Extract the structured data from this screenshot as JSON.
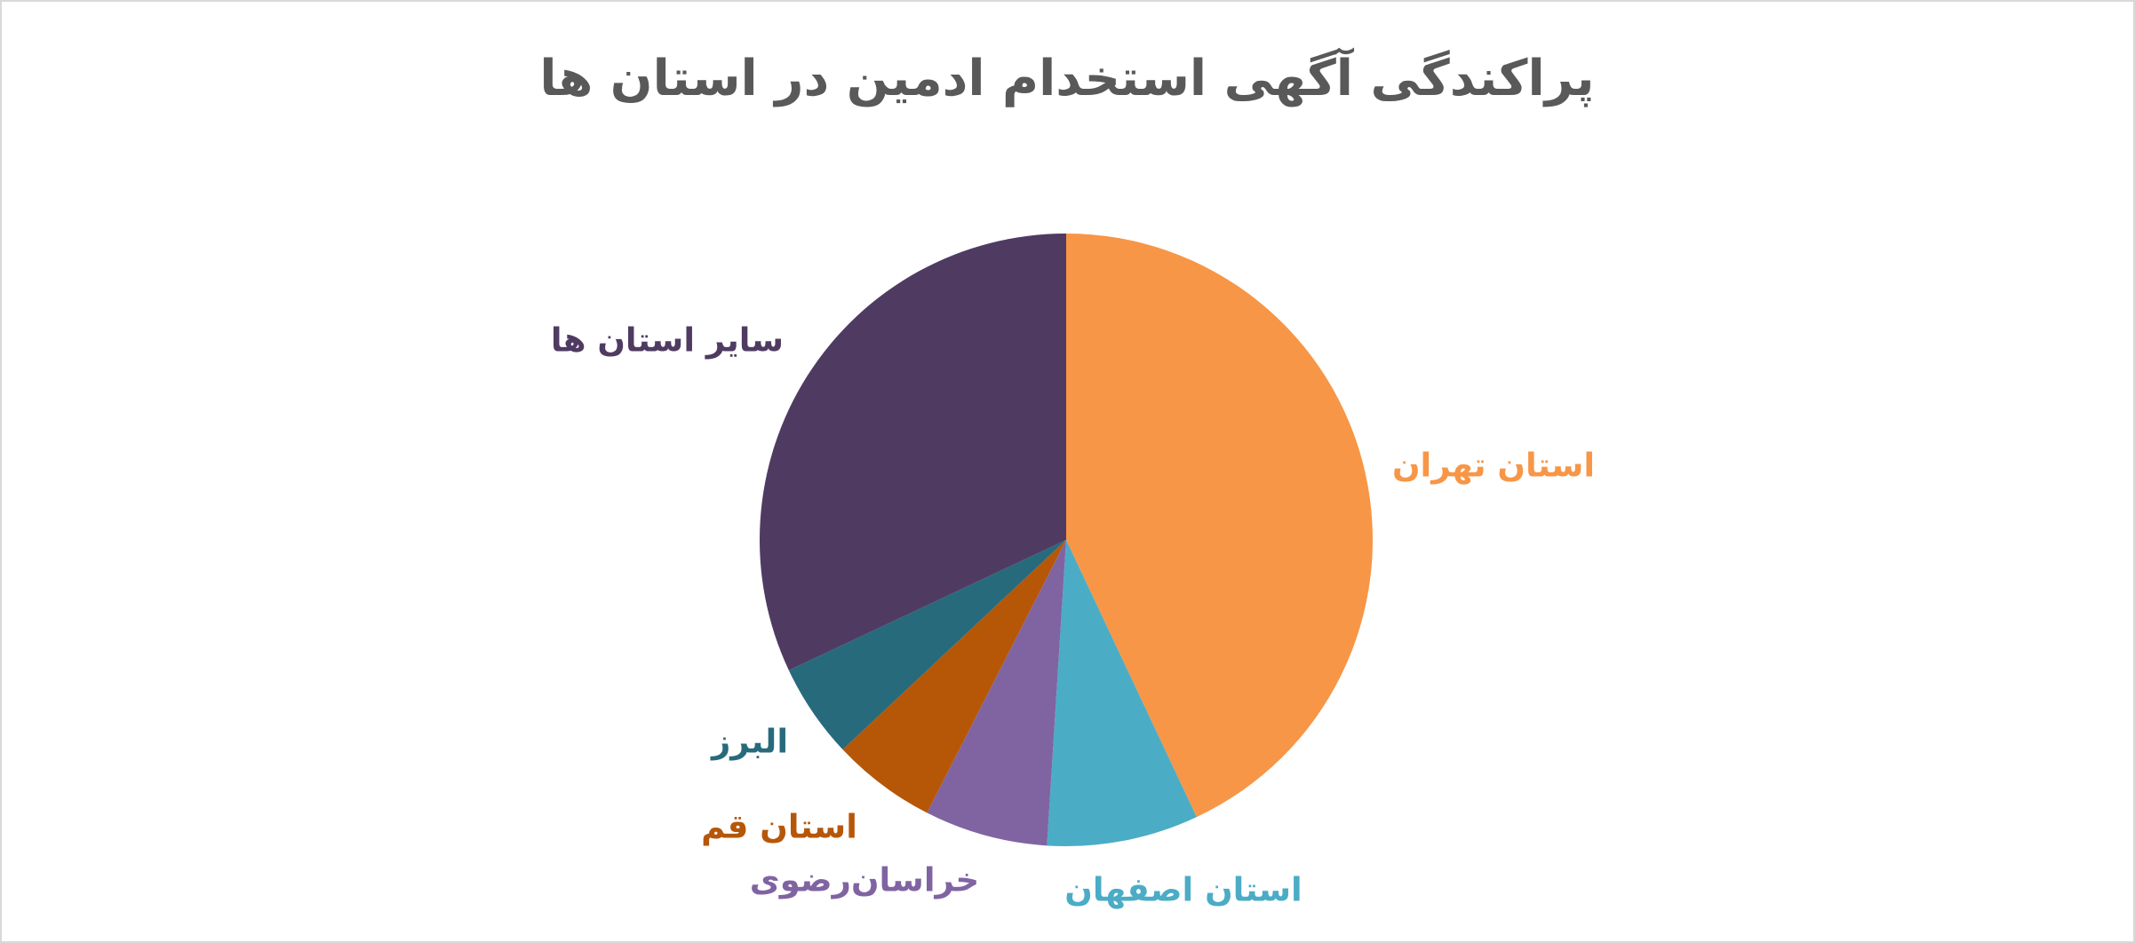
{
  "chart_data": {
    "type": "pie",
    "title": "پراکندگی آگهی استخدام ادمین در استان ها",
    "categories": [
      "استان تهران",
      "استان اصفهان",
      "خراسان‌رضوی",
      "استان قم",
      "البرز",
      "سایر استان ها"
    ],
    "values": [
      43,
      8,
      6.5,
      5.5,
      5,
      32
    ],
    "colors": [
      "#f79646",
      "#4bacc6",
      "#8064a2",
      "#b65708",
      "#276a7c",
      "#4f3b62"
    ]
  }
}
